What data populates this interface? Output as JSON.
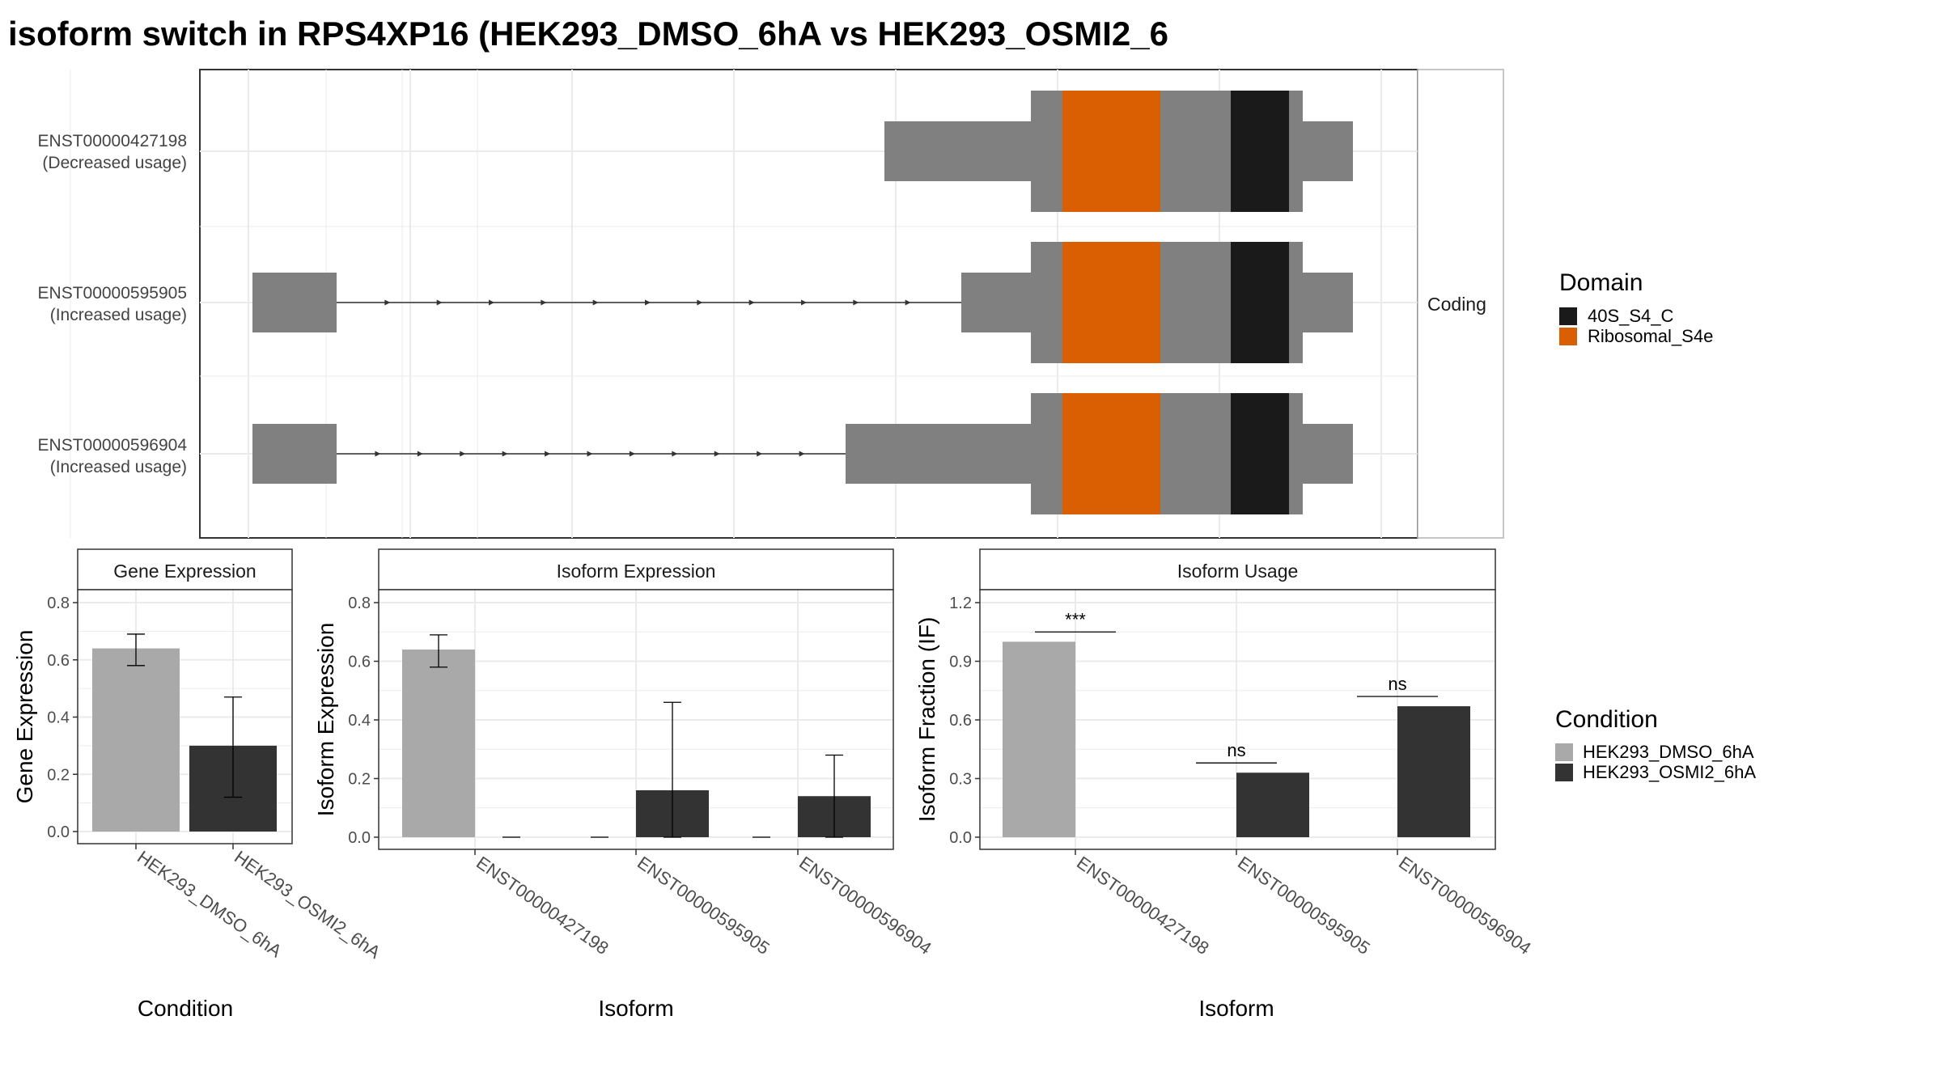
{
  "title": "isoform switch in RPS4XP16 (HEK293_DMSO_6hA vs HEK293_OSMI2_6",
  "colors": {
    "exon": "#808080",
    "domain_40S_S4_C": "#1a1a1a",
    "domain_Ribosomal_S4e": "#d95f02",
    "cond_DMSO": "#a9a9a9",
    "cond_OSMI2": "#333333",
    "grid": "#ebebeb",
    "panel_border": "#333333",
    "strip_fill": "#ffffff"
  },
  "chart_data": [
    {
      "type": "gene-structure",
      "facet_label": "Coding",
      "isoforms": [
        {
          "id": "ENST00000427198",
          "usage": "(Decreased usage)"
        },
        {
          "id": "ENST00000595905",
          "usage": "(Increased usage)"
        },
        {
          "id": "ENST00000596904",
          "usage": "(Increased usage)"
        }
      ],
      "legend": {
        "title": "Domain",
        "items": [
          {
            "label": "40S_S4_C",
            "color_key": "domain_40S_S4_C"
          },
          {
            "label": "Ribosomal_S4e",
            "color_key": "domain_Ribosomal_S4e"
          }
        ]
      }
    },
    {
      "type": "bar",
      "panel": "Gene Expression",
      "xlabel": "Condition",
      "ylabel": "Gene Expression",
      "ylim": [
        0,
        0.8
      ],
      "yticks": [
        "0.0",
        "0.2",
        "0.4",
        "0.6",
        "0.8"
      ],
      "categories": [
        "HEK293_DMSO_6hA",
        "HEK293_OSMI2_6hA"
      ],
      "series": [
        {
          "name": "HEK293_DMSO_6hA",
          "values": [
            0.64,
            null
          ],
          "err_low": [
            0.58,
            null
          ],
          "err_high": [
            0.69,
            null
          ]
        },
        {
          "name": "HEK293_OSMI2_6hA",
          "values": [
            null,
            0.3
          ],
          "err_low": [
            null,
            0.12
          ],
          "err_high": [
            null,
            0.47
          ]
        }
      ]
    },
    {
      "type": "bar",
      "panel": "Isoform Expression",
      "xlabel": "Isoform",
      "ylabel": "Isoform Expression",
      "ylim": [
        0,
        0.8
      ],
      "yticks": [
        "0.0",
        "0.2",
        "0.4",
        "0.6",
        "0.8"
      ],
      "categories": [
        "ENST00000427198",
        "ENST00000595905",
        "ENST00000596904"
      ],
      "series": [
        {
          "name": "HEK293_DMSO_6hA",
          "values": [
            0.64,
            0.0,
            0.0
          ],
          "err_low": [
            0.58,
            0.0,
            0.0
          ],
          "err_high": [
            0.69,
            0.0,
            0.0
          ]
        },
        {
          "name": "HEK293_OSMI2_6hA",
          "values": [
            0.0,
            0.16,
            0.14
          ],
          "err_low": [
            0.0,
            0.0,
            0.0
          ],
          "err_high": [
            0.0,
            0.46,
            0.28
          ]
        }
      ]
    },
    {
      "type": "bar",
      "panel": "Isoform Usage",
      "xlabel": "Isoform",
      "ylabel": "Isoform Fraction (IF)",
      "ylim": [
        0,
        1.2
      ],
      "yticks": [
        "0.0",
        "0.3",
        "0.6",
        "0.9",
        "1.2"
      ],
      "categories": [
        "ENST00000427198",
        "ENST00000595905",
        "ENST00000596904"
      ],
      "series": [
        {
          "name": "HEK293_DMSO_6hA",
          "values": [
            1.0,
            0.0,
            0.0
          ]
        },
        {
          "name": "HEK293_OSMI2_6hA",
          "values": [
            0.0,
            0.33,
            0.67
          ]
        }
      ],
      "significance": [
        {
          "category": "ENST00000427198",
          "label": "***",
          "y": 1.05
        },
        {
          "category": "ENST00000595905",
          "label": "ns",
          "y": 0.38
        },
        {
          "category": "ENST00000596904",
          "label": "ns",
          "y": 0.72
        }
      ],
      "legend": {
        "title": "Condition",
        "items": [
          {
            "label": "HEK293_DMSO_6hA",
            "color_key": "cond_DMSO"
          },
          {
            "label": "HEK293_OSMI2_6hA",
            "color_key": "cond_OSMI2"
          }
        ]
      }
    }
  ]
}
